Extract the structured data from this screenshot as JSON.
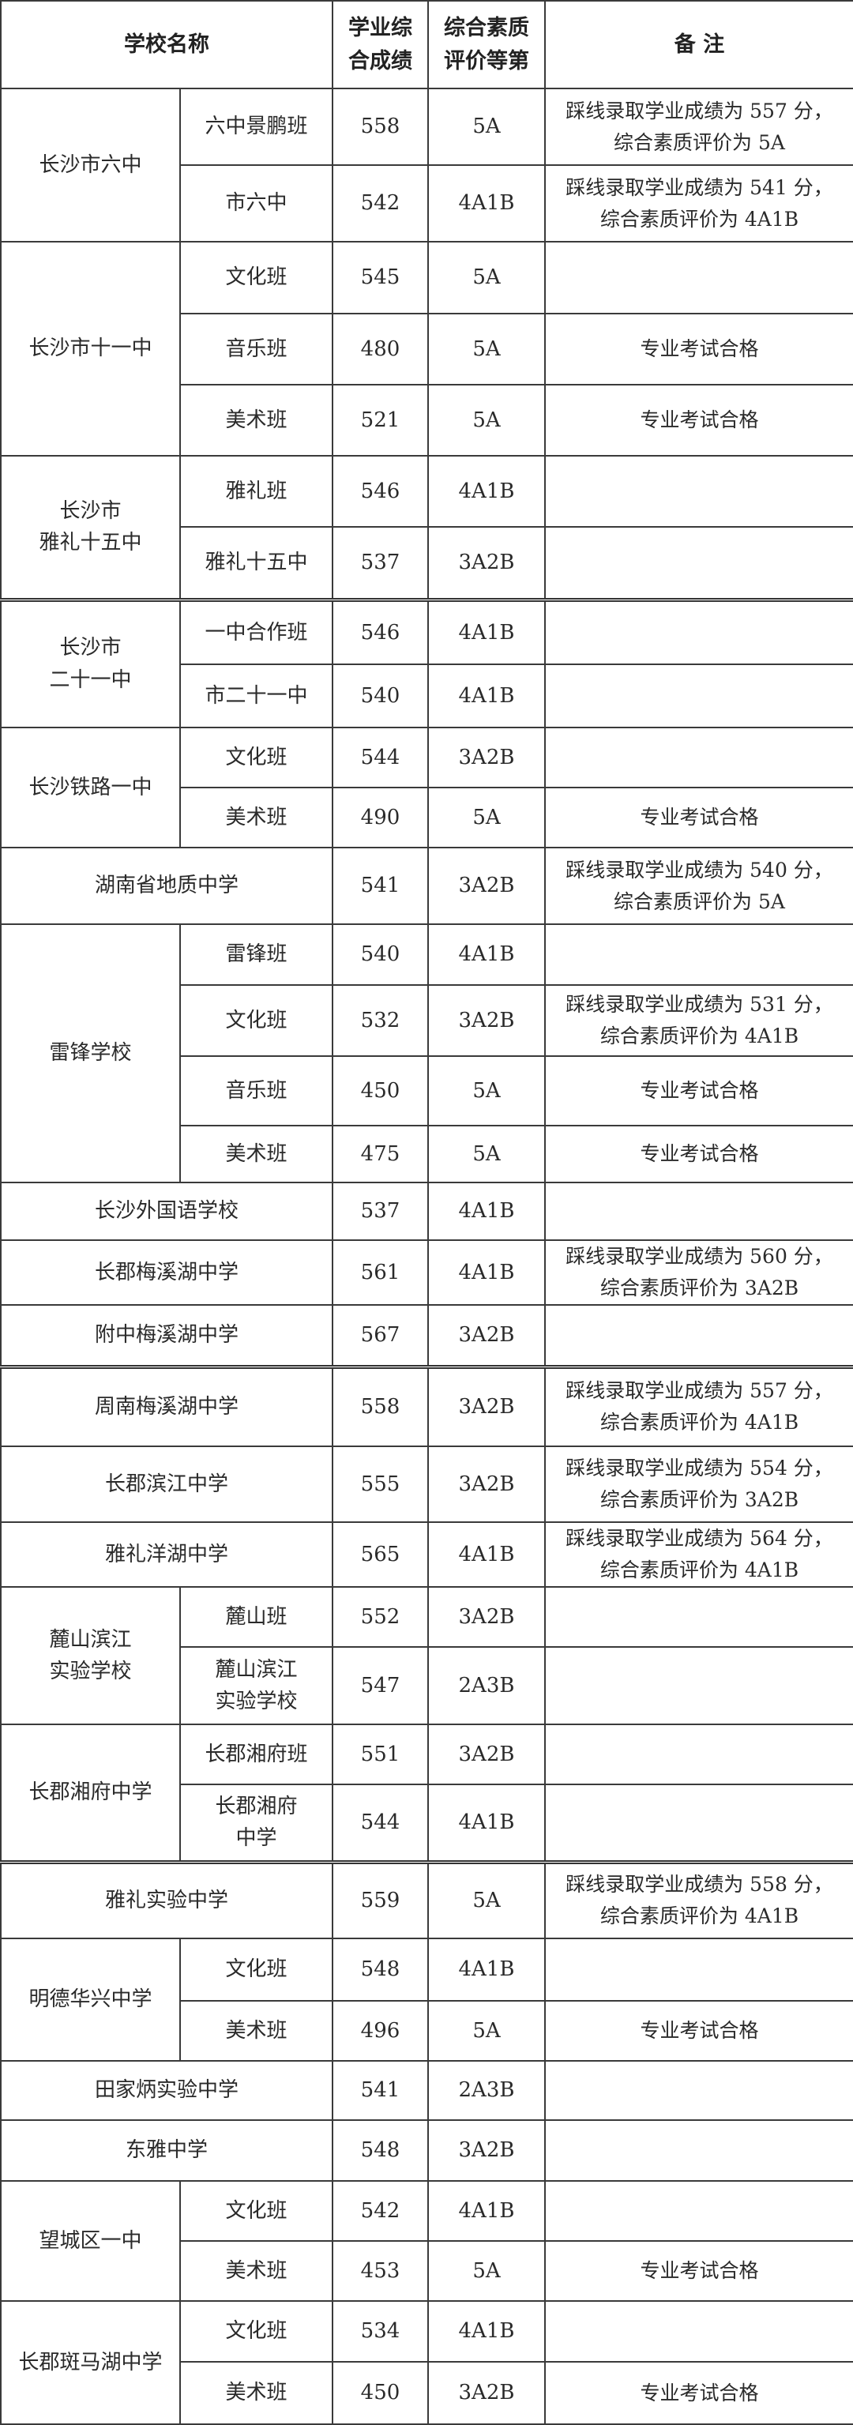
{
  "header": {
    "school": "学校名称",
    "score": "学业综\n合成绩",
    "grade": "综合素质\n评价等第",
    "note": "备 注"
  },
  "groups": [
    {
      "school": "长沙市六中",
      "classes": [
        {
          "name": "六中景鹏班",
          "score": "558",
          "grade": "5A",
          "note": "踩线录取学业成绩为 557 分，\n综合素质评价为 5A"
        },
        {
          "name": "市六中",
          "score": "542",
          "grade": "4A1B",
          "note": "踩线录取学业成绩为 541 分，\n综合素质评价为 4A1B"
        }
      ]
    },
    {
      "school": "长沙市十一中",
      "classes": [
        {
          "name": "文化班",
          "score": "545",
          "grade": "5A",
          "note": ""
        },
        {
          "name": "音乐班",
          "score": "480",
          "grade": "5A",
          "note": "专业考试合格"
        },
        {
          "name": "美术班",
          "score": "521",
          "grade": "5A",
          "note": "专业考试合格"
        }
      ]
    },
    {
      "school": "长沙市\n雅礼十五中",
      "classes": [
        {
          "name": "雅礼班",
          "score": "546",
          "grade": "4A1B",
          "note": ""
        },
        {
          "name": "雅礼十五中",
          "score": "537",
          "grade": "3A2B",
          "note": ""
        }
      ]
    },
    {
      "school": "长沙市\n二十一中",
      "classes": [
        {
          "name": "一中合作班",
          "score": "546",
          "grade": "4A1B",
          "note": ""
        },
        {
          "name": "市二十一中",
          "score": "540",
          "grade": "4A1B",
          "note": ""
        }
      ]
    },
    {
      "school": "长沙铁路一中",
      "classes": [
        {
          "name": "文化班",
          "score": "544",
          "grade": "3A2B",
          "note": ""
        },
        {
          "name": "美术班",
          "score": "490",
          "grade": "5A",
          "note": "专业考试合格"
        }
      ]
    },
    {
      "school": "湖南省地质中学",
      "score": "541",
      "grade": "3A2B",
      "note": "踩线录取学业成绩为 540 分，\n综合素质评价为 5A"
    },
    {
      "school": "雷锋学校",
      "classes": [
        {
          "name": "雷锋班",
          "score": "540",
          "grade": "4A1B",
          "note": ""
        },
        {
          "name": "文化班",
          "score": "532",
          "grade": "3A2B",
          "note": "踩线录取学业成绩为 531 分，\n综合素质评价为 4A1B"
        },
        {
          "name": "音乐班",
          "score": "450",
          "grade": "5A",
          "note": "专业考试合格"
        },
        {
          "name": "美术班",
          "score": "475",
          "grade": "5A",
          "note": "专业考试合格"
        }
      ]
    },
    {
      "school": "长沙外国语学校",
      "score": "537",
      "grade": "4A1B",
      "note": ""
    },
    {
      "school": "长郡梅溪湖中学",
      "score": "561",
      "grade": "4A1B",
      "note": "踩线录取学业成绩为 560 分，\n综合素质评价为 3A2B"
    },
    {
      "school": "附中梅溪湖中学",
      "score": "567",
      "grade": "3A2B",
      "note": ""
    },
    {
      "school": "周南梅溪湖中学",
      "score": "558",
      "grade": "3A2B",
      "note": "踩线录取学业成绩为 557 分，\n综合素质评价为 4A1B"
    },
    {
      "school": "长郡滨江中学",
      "score": "555",
      "grade": "3A2B",
      "note": "踩线录取学业成绩为 554 分，\n综合素质评价为 3A2B"
    },
    {
      "school": "雅礼洋湖中学",
      "score": "565",
      "grade": "4A1B",
      "note": "踩线录取学业成绩为 564 分，\n综合素质评价为 4A1B"
    },
    {
      "school": "麓山滨江\n实验学校",
      "classes": [
        {
          "name": "麓山班",
          "score": "552",
          "grade": "3A2B",
          "note": ""
        },
        {
          "name": "麓山滨江\n实验学校",
          "score": "547",
          "grade": "2A3B",
          "note": ""
        }
      ]
    },
    {
      "school": "长郡湘府中学",
      "classes": [
        {
          "name": "长郡湘府班",
          "score": "551",
          "grade": "3A2B",
          "note": ""
        },
        {
          "name": "长郡湘府\n中学",
          "score": "544",
          "grade": "4A1B",
          "note": ""
        }
      ]
    },
    {
      "school": "雅礼实验中学",
      "score": "559",
      "grade": "5A",
      "note": "踩线录取学业成绩为 558 分，\n综合素质评价为 4A1B"
    },
    {
      "school": "明德华兴中学",
      "classes": [
        {
          "name": "文化班",
          "score": "548",
          "grade": "4A1B",
          "note": ""
        },
        {
          "name": "美术班",
          "score": "496",
          "grade": "5A",
          "note": "专业考试合格"
        }
      ]
    },
    {
      "school": "田家炳实验中学",
      "score": "541",
      "grade": "2A3B",
      "note": ""
    },
    {
      "school": "东雅中学",
      "score": "548",
      "grade": "3A2B",
      "note": ""
    },
    {
      "school": "望城区一中",
      "classes": [
        {
          "name": "文化班",
          "score": "542",
          "grade": "4A1B",
          "note": ""
        },
        {
          "name": "美术班",
          "score": "453",
          "grade": "5A",
          "note": "专业考试合格"
        }
      ]
    },
    {
      "school": "长郡斑马湖中学",
      "classes": [
        {
          "name": "文化班",
          "score": "534",
          "grade": "4A1B",
          "note": ""
        },
        {
          "name": "美术班",
          "score": "450",
          "grade": "3A2B",
          "note": "专业考试合格"
        }
      ]
    }
  ]
}
